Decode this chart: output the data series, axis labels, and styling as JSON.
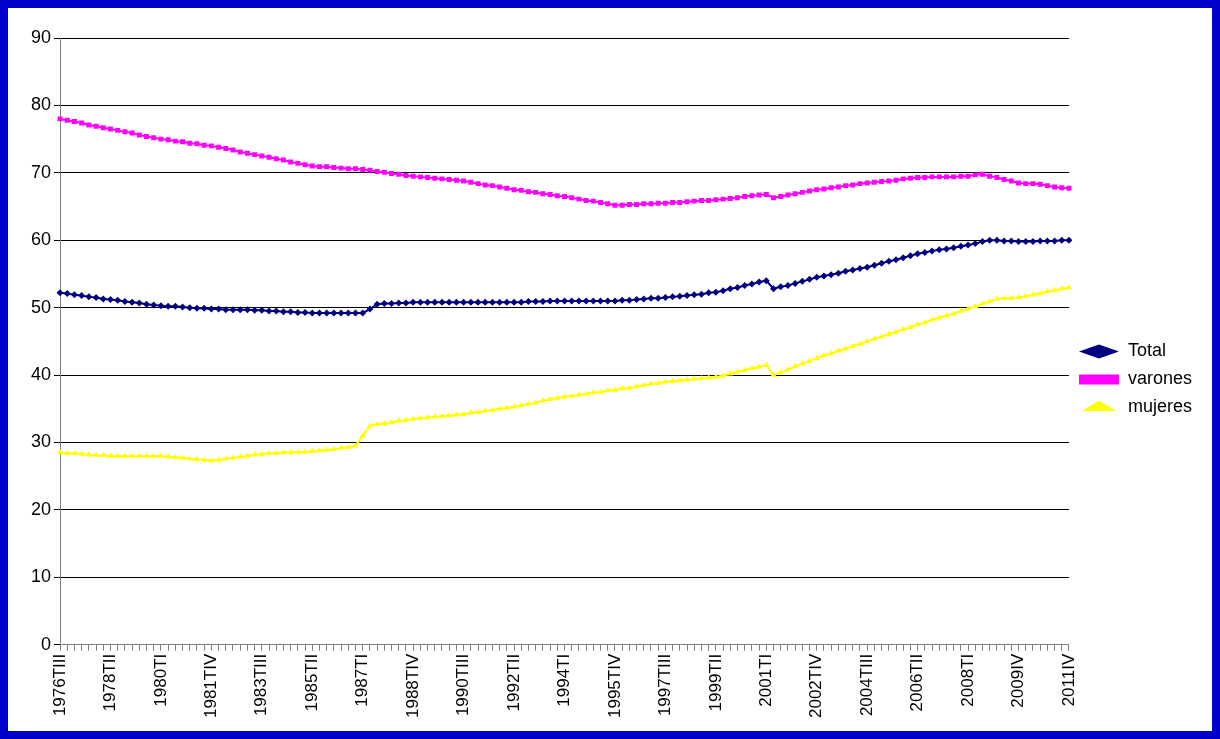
{
  "chart_data": {
    "type": "line",
    "categories": [
      "1976TIII",
      null,
      null,
      null,
      null,
      null,
      null,
      "1978TII",
      null,
      null,
      null,
      null,
      null,
      null,
      "1980TI",
      null,
      null,
      null,
      null,
      null,
      null,
      "1981TIV",
      null,
      null,
      null,
      null,
      null,
      null,
      "1983TIII",
      null,
      null,
      null,
      null,
      null,
      null,
      "1985TII",
      null,
      null,
      null,
      null,
      null,
      null,
      "1987TI",
      null,
      null,
      null,
      null,
      null,
      null,
      "1988TIV",
      null,
      null,
      null,
      null,
      null,
      null,
      "1990TIII",
      null,
      null,
      null,
      null,
      null,
      null,
      "1992TII",
      null,
      null,
      null,
      null,
      null,
      null,
      "1994TI",
      null,
      null,
      null,
      null,
      null,
      null,
      "1995TIV",
      null,
      null,
      null,
      null,
      null,
      null,
      "1997TIII",
      null,
      null,
      null,
      null,
      null,
      null,
      "1999TII",
      null,
      null,
      null,
      null,
      null,
      null,
      "2001TI",
      null,
      null,
      null,
      null,
      null,
      null,
      "2002TIV",
      null,
      null,
      null,
      null,
      null,
      null,
      "2004TIII",
      null,
      null,
      null,
      null,
      null,
      null,
      "2006TII",
      null,
      null,
      null,
      null,
      null,
      null,
      "2008TI",
      null,
      null,
      null,
      null,
      null,
      null,
      "2009IV",
      null,
      null,
      null,
      null,
      null,
      null,
      "2011IV"
    ],
    "series": [
      {
        "name": "Total",
        "color": "#000080",
        "marker": "diamond",
        "values": [
          52.2,
          52.1,
          51.9,
          51.8,
          51.6,
          51.5,
          51.3,
          51.2,
          51.1,
          50.9,
          50.8,
          50.7,
          50.5,
          50.4,
          50.3,
          50.2,
          50.2,
          50.1,
          50.0,
          49.9,
          49.9,
          49.8,
          49.8,
          49.7,
          49.7,
          49.7,
          49.7,
          49.6,
          49.6,
          49.5,
          49.5,
          49.4,
          49.4,
          49.3,
          49.3,
          49.2,
          49.2,
          49.2,
          49.2,
          49.2,
          49.2,
          49.2,
          49.2,
          49.8,
          50.5,
          50.6,
          50.6,
          50.7,
          50.7,
          50.8,
          50.8,
          50.8,
          50.8,
          50.8,
          50.8,
          50.8,
          50.8,
          50.8,
          50.8,
          50.8,
          50.8,
          50.8,
          50.8,
          50.8,
          50.8,
          50.9,
          50.9,
          50.9,
          51.0,
          51.0,
          51.0,
          51.0,
          51.0,
          51.0,
          51.0,
          51.0,
          51.0,
          51.0,
          51.1,
          51.1,
          51.2,
          51.3,
          51.4,
          51.4,
          51.5,
          51.6,
          51.7,
          51.8,
          51.9,
          52.0,
          52.2,
          52.3,
          52.5,
          52.8,
          53.0,
          53.3,
          53.5,
          53.8,
          54.0,
          52.8,
          53.1,
          53.3,
          53.6,
          53.9,
          54.2,
          54.5,
          54.7,
          54.9,
          55.1,
          55.4,
          55.6,
          55.8,
          56.0,
          56.3,
          56.6,
          56.9,
          57.1,
          57.4,
          57.7,
          58.0,
          58.2,
          58.4,
          58.6,
          58.7,
          58.9,
          59.1,
          59.3,
          59.5,
          59.8,
          60.0,
          60.0,
          59.9,
          59.9,
          59.8,
          59.8,
          59.8,
          59.9,
          59.9,
          59.9,
          60.0,
          60.0
        ]
      },
      {
        "name": "varones",
        "color": "#ff00ff",
        "marker": "square",
        "values": [
          78.0,
          77.8,
          77.6,
          77.4,
          77.1,
          76.9,
          76.7,
          76.5,
          76.3,
          76.1,
          75.9,
          75.6,
          75.4,
          75.2,
          75.0,
          74.9,
          74.7,
          74.6,
          74.4,
          74.3,
          74.1,
          74.0,
          73.8,
          73.6,
          73.4,
          73.1,
          72.9,
          72.7,
          72.5,
          72.3,
          72.1,
          71.9,
          71.6,
          71.4,
          71.2,
          71.0,
          70.9,
          70.9,
          70.8,
          70.7,
          70.6,
          70.6,
          70.5,
          70.4,
          70.2,
          70.1,
          69.9,
          69.8,
          69.6,
          69.5,
          69.4,
          69.3,
          69.2,
          69.1,
          69.0,
          68.9,
          68.8,
          68.6,
          68.4,
          68.2,
          68.1,
          67.9,
          67.7,
          67.5,
          67.4,
          67.2,
          67.1,
          66.9,
          66.8,
          66.6,
          66.5,
          66.3,
          66.1,
          65.9,
          65.8,
          65.6,
          65.4,
          65.2,
          65.2,
          65.3,
          65.3,
          65.4,
          65.4,
          65.5,
          65.5,
          65.6,
          65.6,
          65.7,
          65.8,
          65.9,
          65.9,
          66.0,
          66.1,
          66.2,
          66.3,
          66.5,
          66.6,
          66.7,
          66.8,
          66.3,
          66.5,
          66.7,
          66.9,
          67.1,
          67.3,
          67.5,
          67.6,
          67.8,
          67.9,
          68.1,
          68.2,
          68.4,
          68.5,
          68.6,
          68.7,
          68.8,
          68.9,
          69.1,
          69.2,
          69.3,
          69.3,
          69.4,
          69.4,
          69.4,
          69.4,
          69.5,
          69.5,
          69.7,
          69.8,
          69.5,
          69.3,
          69.0,
          68.8,
          68.5,
          68.4,
          68.4,
          68.3,
          68.1,
          67.9,
          67.8,
          67.7
        ]
      },
      {
        "name": "mujeres",
        "color": "#ffff00",
        "marker": "triangle",
        "values": [
          28.5,
          28.4,
          28.4,
          28.3,
          28.2,
          28.1,
          28.1,
          28.0,
          28.0,
          28.0,
          28.0,
          28.0,
          28.0,
          28.0,
          28.0,
          27.9,
          27.8,
          27.7,
          27.6,
          27.5,
          27.4,
          27.3,
          27.4,
          27.6,
          27.7,
          27.9,
          28.0,
          28.2,
          28.3,
          28.4,
          28.4,
          28.5,
          28.5,
          28.6,
          28.6,
          28.7,
          28.8,
          28.9,
          29.0,
          29.2,
          29.3,
          29.5,
          31.0,
          32.5,
          32.7,
          32.8,
          33.0,
          33.2,
          33.3,
          33.5,
          33.6,
          33.7,
          33.8,
          33.9,
          34.0,
          34.1,
          34.2,
          34.4,
          34.5,
          34.7,
          34.8,
          35.0,
          35.1,
          35.3,
          35.5,
          35.7,
          35.9,
          36.2,
          36.4,
          36.6,
          36.8,
          36.9,
          37.1,
          37.2,
          37.4,
          37.5,
          37.7,
          37.8,
          38.0,
          38.1,
          38.3,
          38.5,
          38.7,
          38.8,
          39.0,
          39.1,
          39.2,
          39.3,
          39.4,
          39.5,
          39.6,
          39.7,
          39.9,
          40.2,
          40.5,
          40.7,
          41.0,
          41.2,
          41.5,
          40.0,
          40.4,
          40.8,
          41.3,
          41.7,
          42.1,
          42.5,
          42.9,
          43.2,
          43.6,
          43.9,
          44.3,
          44.6,
          45.0,
          45.4,
          45.7,
          46.1,
          46.4,
          46.8,
          47.1,
          47.5,
          47.8,
          48.2,
          48.5,
          48.8,
          49.1,
          49.5,
          49.8,
          50.2,
          50.6,
          50.9,
          51.3,
          51.4,
          51.4,
          51.5,
          51.7,
          51.9,
          52.1,
          52.4,
          52.6,
          52.8,
          53.0
        ]
      }
    ],
    "ylim": [
      0,
      90
    ],
    "yticks": [
      0,
      10,
      20,
      30,
      40,
      50,
      60,
      70,
      80,
      90
    ],
    "grid": "y",
    "legend": "right",
    "line_style": "solid"
  }
}
